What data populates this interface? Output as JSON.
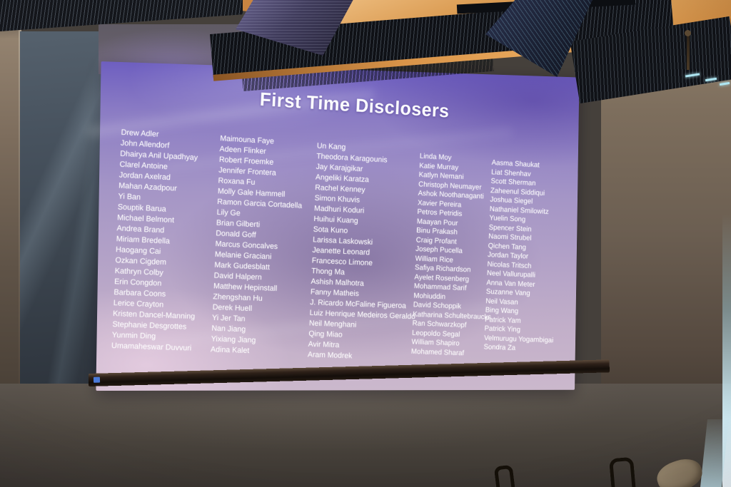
{
  "slide": {
    "title": "First Time Disclosers",
    "columns": [
      [
        "Drew Adler",
        "John Allendorf",
        "Dhairya Anil Upadhyay",
        "Clarel Antoine",
        "Jordan Axelrad",
        "Mahan Azadpour",
        "Yi Ban",
        "Souptik Barua",
        "Michael Belmont",
        "Andrea Brand",
        "Miriam Bredella",
        "Haogang Cai",
        "Ozkan Cigdem",
        "Kathryn Colby",
        "Erin Congdon",
        "Barbara Coons",
        "Lerice Crayton",
        "Kristen Dancel-Manning",
        "Stephanie Desgrottes",
        "Yunmin Ding",
        "Umamaheswar Duvvuri"
      ],
      [
        "Maimouna Faye",
        "Adeen Flinker",
        "Robert Froemke",
        "Jennifer Frontera",
        "Roxana Fu",
        "Molly Gale Hammell",
        "Ramon Garcia Cortadella",
        "Lily Ge",
        "Brian Gilberti",
        "Donald Goff",
        "Marcus Goncalves",
        "Melanie Graciani",
        "Mark Gudesblatt",
        "David Halpern",
        "Matthew Hepinstall",
        "Zhengshan Hu",
        "Derek Huell",
        "Yi Jer Tan",
        "Nan Jiang",
        "Yixiang Jiang",
        "Adina Kalet"
      ],
      [
        "Un Kang",
        "Theodora Karagounis",
        "Jay Karajgikar",
        "Angeliki Karatza",
        "Rachel Kenney",
        "Simon Khuvis",
        "Madhuri Koduri",
        "Huihui Kuang",
        "Sota Kuno",
        "Larissa Laskowski",
        "Jeanette Leonard",
        "Francesco Limone",
        "Thong Ma",
        "Ashish Malhotra",
        "Fanny Matheis",
        "J. Ricardo McFaline Figueroa",
        "Luiz Henrique Medeiros Geraldo",
        "Neil Menghani",
        "Qing Miao",
        "Avir Mitra",
        "Aram Modrek"
      ],
      [
        "Linda Moy",
        "Katie Murray",
        "Katlyn Nemani",
        "Christoph Neumayer",
        "Ashok Noothanaganti",
        "Xavier Pereira",
        "Petros Petridis",
        "Maayan Pour",
        "Binu Prakash",
        "Craig Profant",
        "Joseph Pucella",
        "William Rice",
        "Safiya Richardson",
        "Ayelet Rosenberg",
        "Mohammad Sarif",
        "Mohiuddin",
        "David Schoppik",
        "Katharina Schultebraucks",
        "Ran Schwarzkopf",
        "Leopoldo Segal",
        "William Shapiro",
        "Mohamed Sharaf"
      ],
      [
        "Aasma Shaukat",
        "Liat Shenhav",
        "Scott Sherman",
        "Zaheenul Siddiqui",
        "Joshua Siegel",
        "Nathaniel Smilowitz",
        "Yuelin Song",
        "Spencer Stein",
        "Naomi Strubel",
        "Qichen Tang",
        "Jordan Taylor",
        "Nicolas Tritsch",
        "Neel Vallurupalli",
        "Anna Van Meter",
        "Suzanne Vang",
        "Neil Vasan",
        "Bing Wang",
        "Patrick Yam",
        "Patrick Ying",
        "Velmurugu Yogambigai",
        "Sondra Za"
      ]
    ]
  },
  "colors": {
    "slide_purple_top": "#6e5fc0",
    "slide_pink_bottom": "#cbb8cc",
    "slide_text": "#ffffff",
    "ceiling_orange": "#d89348",
    "screen_bar": "#2e2119",
    "bar_indicator_blue": "#4a79d8",
    "monitor_text_cyan": "#96d7f0"
  }
}
